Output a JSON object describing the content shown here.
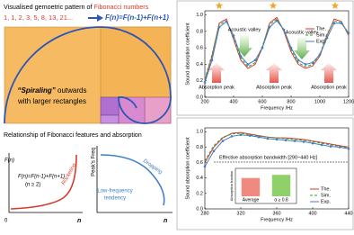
{
  "diagram": {
    "title_prefix": "Visualised gemoetric pattern of",
    "title_highlight": "Fibonacci numbers",
    "sequence": "1, 1, 2, 3, 5, 8, 13, 21...",
    "formula": "F(n)=F(n-1)+F(n+1)",
    "spiral_1": "“Spiraling”",
    "spiral_2": " outwards",
    "spiral_3": "with larger rectangles",
    "relation_title": "Relationship of Fibonacci features and absorption",
    "left_plot": {
      "ylabel": "F(n)",
      "formula": "F(n)=F(n-1)+F(n+1)",
      "condition": "(n ≥ 2)",
      "trend": "Rocketing",
      "xlabel": "n",
      "origin": "0"
    },
    "right_plot": {
      "ylabel": "Peak's Freq",
      "trend": "Dropping",
      "note_1": "Low-frequency",
      "note_2": "tendency",
      "xlabel": "n"
    }
  },
  "chart_data": [
    {
      "type": "line",
      "xlabel": "Frequency /Hz",
      "ylabel": "Sound absorption coefficient",
      "x": [
        200,
        250,
        300,
        350,
        400,
        450,
        500,
        550,
        600,
        650,
        700,
        750,
        800,
        850,
        900,
        950,
        1000,
        1050,
        1100,
        1150,
        1200
      ],
      "series": [
        {
          "name": "The.",
          "color": "#d93a2b",
          "dash": "",
          "values": [
            0.2,
            0.5,
            0.9,
            0.95,
            0.7,
            0.45,
            0.35,
            0.4,
            0.6,
            0.9,
            0.97,
            0.8,
            0.55,
            0.4,
            0.35,
            0.38,
            0.5,
            0.75,
            0.95,
            0.92,
            0.75
          ]
        },
        {
          "name": "Sim.",
          "color": "#3a9a3a",
          "dash": "3,2",
          "values": [
            0.22,
            0.52,
            0.88,
            0.93,
            0.72,
            0.48,
            0.37,
            0.42,
            0.62,
            0.88,
            0.95,
            0.82,
            0.58,
            0.42,
            0.37,
            0.4,
            0.52,
            0.77,
            0.93,
            0.9,
            0.77
          ]
        },
        {
          "name": "Exp.",
          "color": "#3f7fc8",
          "dash": "",
          "marker": true,
          "values": [
            0.18,
            0.45,
            0.85,
            0.92,
            0.75,
            0.5,
            0.4,
            0.45,
            0.6,
            0.85,
            0.93,
            0.82,
            0.6,
            0.45,
            0.4,
            0.42,
            0.52,
            0.72,
            0.9,
            0.9,
            0.78
          ]
        }
      ],
      "xlim": [
        200,
        1200
      ],
      "xticks": [
        200,
        400,
        600,
        800,
        1000,
        1200
      ],
      "ylim": [
        0,
        1.05
      ],
      "yticks": [
        {
          "value": 0,
          "label": "0.0"
        },
        0.2,
        0.4,
        0.6,
        0.8,
        {
          "value": 1,
          "label": "1.0"
        }
      ],
      "annotations": {
        "valley": "Acoustic valley",
        "peak": "Absorption peak"
      }
    },
    {
      "type": "line",
      "xlabel": "Frequency /Hz",
      "ylabel": "Sound absorption coefficient",
      "x": [
        280,
        290,
        300,
        310,
        320,
        330,
        340,
        350,
        360,
        370,
        380,
        390,
        400,
        410,
        420,
        430,
        440
      ],
      "series": [
        {
          "name": "The.",
          "color": "#d93a2b",
          "dash": "",
          "values": [
            0.6,
            0.8,
            0.92,
            0.98,
            0.99,
            0.97,
            0.95,
            0.93,
            0.92,
            0.92,
            0.91,
            0.9,
            0.88,
            0.86,
            0.84,
            0.82,
            0.8
          ]
        },
        {
          "name": "Sim.",
          "color": "#3a9a3a",
          "dash": "3,2",
          "values": [
            0.62,
            0.82,
            0.93,
            0.97,
            0.98,
            0.96,
            0.94,
            0.93,
            0.92,
            0.91,
            0.9,
            0.89,
            0.87,
            0.85,
            0.83,
            0.81,
            0.79
          ]
        },
        {
          "name": "Exp.",
          "color": "#3f7fc8",
          "dash": "",
          "marker": true,
          "values": [
            0.55,
            0.75,
            0.88,
            0.94,
            0.96,
            0.95,
            0.93,
            0.91,
            0.9,
            0.89,
            0.88,
            0.87,
            0.85,
            0.83,
            0.81,
            0.8,
            0.78
          ]
        }
      ],
      "xlim": [
        280,
        440
      ],
      "xticks": [
        280,
        320,
        360,
        400,
        440
      ],
      "ylim": [
        0,
        1.05
      ],
      "yticks": [
        {
          "value": 0,
          "label": "0.0"
        },
        0.2,
        0.4,
        0.6,
        0.8,
        {
          "value": 1,
          "label": "1.0"
        }
      ],
      "annotation": "Effective absorption bandwidth [290~440 Hz]",
      "inset": {
        "ylabel": "Absorption fraction",
        "categories": [
          "Average",
          "α ≥ 0.8"
        ],
        "values": [
          0.7,
          0.82
        ],
        "colors": [
          "#f08a80",
          "#8fd06a"
        ],
        "ylim": [
          0,
          1
        ]
      }
    }
  ]
}
